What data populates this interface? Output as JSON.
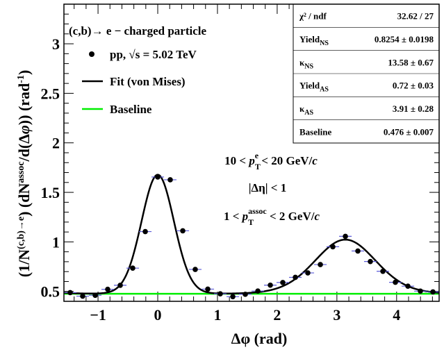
{
  "chart_data": {
    "type": "scatter",
    "xlabel": "Δφ (rad)",
    "ylabel": "(1/N^{(c,b)→e}) (dN^{assoc}/d(Δφ)) (rad^{-1})",
    "xlim": [
      -1.571,
      4.712
    ],
    "ylim": [
      0.4,
      3.4
    ],
    "x_ticks": [
      "−1",
      "0",
      "1",
      "2",
      "3",
      "4"
    ],
    "x_tick_values": [
      -1,
      0,
      1,
      2,
      3,
      4
    ],
    "y_ticks": [
      "0.5",
      "1",
      "1.5",
      "2",
      "2.5",
      "3"
    ],
    "y_tick_values": [
      0.5,
      1,
      1.5,
      2,
      2.5,
      3
    ],
    "grid": false,
    "legend_placement": "top-left",
    "legend": [
      {
        "label": "(c,b)→ e  − charged particle",
        "kind": "header"
      },
      {
        "label": "pp,  √s = 5.02 TeV",
        "kind": "marker"
      },
      {
        "label": "Fit (von Mises)",
        "kind": "line",
        "color": "#000000"
      },
      {
        "label": "Baseline",
        "kind": "line",
        "color": "#00ee00"
      }
    ],
    "annotations": [
      {
        "text": "10 <  p_T^e  < 20 GeV/c"
      },
      {
        "text": "|Δη| < 1"
      },
      {
        "text": "1 <  p_T^assoc  < 2 GeV/c"
      }
    ],
    "fit_stats": [
      {
        "label": "χ² / ndf",
        "value": "32.62 / 27"
      },
      {
        "label": "Yield_NS",
        "value": "0.8254  ± 0.0198"
      },
      {
        "label": "κ_NS",
        "value": "13.58  ± 0.67"
      },
      {
        "label": "Yield_AS",
        "value": "0.72  ± 0.03"
      },
      {
        "label": "κ_AS",
        "value": "3.91  ± 0.28"
      },
      {
        "label": "Baseline",
        "value": "0.476  ± 0.007"
      }
    ],
    "fit_params": {
      "yield_ns": 0.8254,
      "kappa_ns": 13.58,
      "yield_as": 0.72,
      "kappa_as": 3.91,
      "baseline": 0.476
    },
    "series": [
      {
        "kind": "points",
        "x": [
          -1.466,
          -1.257,
          -1.047,
          -0.838,
          -0.628,
          -0.419,
          -0.209,
          0.0,
          0.209,
          0.419,
          0.628,
          0.838,
          1.047,
          1.257,
          1.466,
          1.676,
          1.885,
          2.094,
          2.304,
          2.513,
          2.723,
          2.932,
          3.142,
          3.351,
          3.56,
          3.77,
          3.979,
          4.189,
          4.398,
          4.608
        ],
        "y": [
          0.488,
          0.452,
          0.461,
          0.521,
          0.562,
          0.735,
          1.104,
          1.655,
          1.627,
          1.112,
          0.722,
          0.523,
          0.476,
          0.447,
          0.471,
          0.504,
          0.563,
          0.59,
          0.642,
          0.687,
          0.771,
          0.951,
          1.056,
          0.908,
          0.802,
          0.703,
          0.592,
          0.553,
          0.503,
          0.495
        ],
        "xerr": 0.105
      }
    ]
  }
}
